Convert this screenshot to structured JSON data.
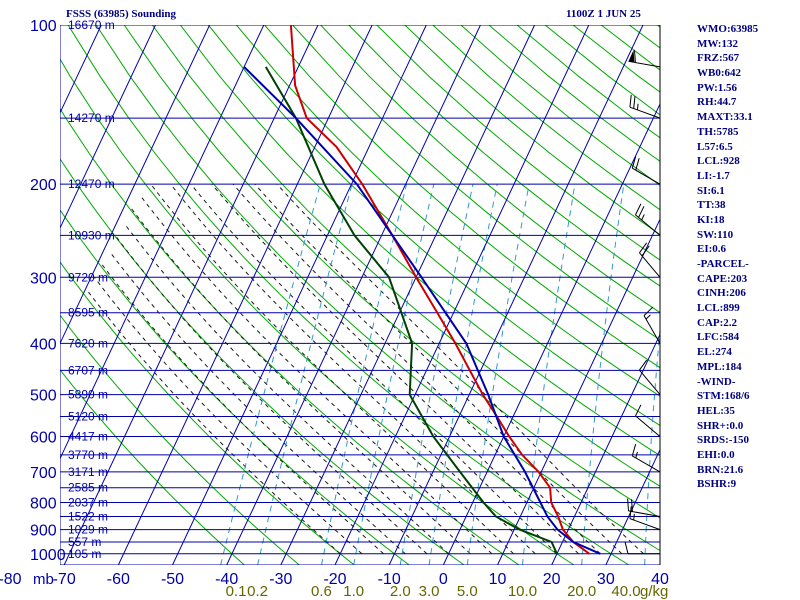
{
  "header": {
    "title": "FSSS (63985) Sounding",
    "valid": "1100Z  1 JUN 25"
  },
  "chart_data": {
    "type": "line",
    "title": "FSSS (63985) Sounding",
    "subtitle": "1100Z  1 JUN 25",
    "x_axis": {
      "label": "",
      "min": -80,
      "max": 40,
      "ticks": [
        -80,
        -70,
        -60,
        -50,
        -40,
        -30,
        -20,
        -10,
        0,
        10,
        20,
        30,
        40
      ],
      "tick_labels": [
        "-80",
        "-70",
        "-60",
        "-50",
        "-40",
        "-30",
        "-20",
        "-10",
        "0",
        "10",
        "20",
        "30",
        "40"
      ]
    },
    "y_axis": {
      "label": "mb",
      "scale": "log",
      "min": 100,
      "max": 1050,
      "ticks": [
        100,
        200,
        300,
        400,
        500,
        600,
        700,
        800,
        900,
        1000
      ],
      "tick_labels": [
        "100",
        "200",
        "300",
        "400",
        "500",
        "600",
        "700",
        "800",
        "900",
        "1000"
      ]
    },
    "height_labels": [
      {
        "p": 100,
        "text": "16670 m"
      },
      {
        "p": 150,
        "text": "14270 m"
      },
      {
        "p": 200,
        "text": "12470 m"
      },
      {
        "p": 250,
        "text": "10930 m"
      },
      {
        "p": 300,
        "text": "9720 m"
      },
      {
        "p": 350,
        "text": "8595 m"
      },
      {
        "p": 400,
        "text": "7620 m"
      },
      {
        "p": 450,
        "text": "6707 m"
      },
      {
        "p": 500,
        "text": "5890 m"
      },
      {
        "p": 550,
        "text": "5120 m"
      },
      {
        "p": 600,
        "text": "4417 m"
      },
      {
        "p": 650,
        "text": "3770 m"
      },
      {
        "p": 700,
        "text": "3171 m"
      },
      {
        "p": 750,
        "text": "2585 m"
      },
      {
        "p": 800,
        "text": "2037 m"
      },
      {
        "p": 850,
        "text": "1522 m"
      },
      {
        "p": 900,
        "text": "1029 m"
      },
      {
        "p": 950,
        "text": "557 m"
      },
      {
        "p": 1000,
        "text": "105 m"
      }
    ],
    "mixing_ratio_labels": [
      "0.1",
      "0.2",
      "0.6",
      "1.0",
      "2.0",
      "3.0",
      "5.0",
      "10.0",
      "20.0",
      "40.0"
    ],
    "mixing_ratio_unit": "g/kg",
    "series": [
      {
        "color": "#cc0000",
        "points": [
          {
            "p": 1000,
            "t": 26
          },
          {
            "p": 950,
            "t": 22
          },
          {
            "p": 925,
            "t": 20.5
          },
          {
            "p": 900,
            "t": 19
          },
          {
            "p": 850,
            "t": 17
          },
          {
            "p": 800,
            "t": 14.5
          },
          {
            "p": 750,
            "t": 13
          },
          {
            "p": 700,
            "t": 9.5
          },
          {
            "p": 650,
            "t": 5
          },
          {
            "p": 600,
            "t": 1
          },
          {
            "p": 550,
            "t": -3
          },
          {
            "p": 500,
            "t": -7.5
          },
          {
            "p": 450,
            "t": -12
          },
          {
            "p": 400,
            "t": -17
          },
          {
            "p": 350,
            "t": -23
          },
          {
            "p": 300,
            "t": -30
          },
          {
            "p": 250,
            "t": -38
          },
          {
            "p": 200,
            "t": -48
          },
          {
            "p": 170,
            "t": -56
          },
          {
            "p": 150,
            "t": -64
          },
          {
            "p": 130,
            "t": -69
          },
          {
            "p": 100,
            "t": -75
          }
        ]
      },
      {
        "color": "#004000",
        "points": [
          {
            "p": 1000,
            "t": 20
          },
          {
            "p": 950,
            "t": 18
          },
          {
            "p": 900,
            "t": 11
          },
          {
            "p": 850,
            "t": 5.5
          },
          {
            "p": 800,
            "t": 2
          },
          {
            "p": 700,
            "t": -5
          },
          {
            "p": 600,
            "t": -13
          },
          {
            "p": 500,
            "t": -21
          },
          {
            "p": 400,
            "t": -25
          },
          {
            "p": 300,
            "t": -35
          },
          {
            "p": 250,
            "t": -45
          },
          {
            "p": 200,
            "t": -55
          },
          {
            "p": 150,
            "t": -66
          },
          {
            "p": 120,
            "t": -76
          }
        ]
      },
      {
        "color": "#0000aa",
        "points": [
          {
            "p": 1000,
            "t": 28
          },
          {
            "p": 950,
            "t": 22
          },
          {
            "p": 900,
            "t": 18
          },
          {
            "p": 850,
            "t": 15
          },
          {
            "p": 800,
            "t": 12.5
          },
          {
            "p": 700,
            "t": 7
          },
          {
            "p": 600,
            "t": 0
          },
          {
            "p": 500,
            "t": -6.5
          },
          {
            "p": 400,
            "t": -15
          },
          {
            "p": 300,
            "t": -29
          },
          {
            "p": 250,
            "t": -38
          },
          {
            "p": 200,
            "t": -49
          },
          {
            "p": 150,
            "t": -66
          },
          {
            "p": 120,
            "t": -80
          }
        ]
      }
    ],
    "wind_barbs": [
      {
        "p": 1000,
        "dir": 270,
        "spd": 10
      },
      {
        "p": 900,
        "dir": 290,
        "spd": 15
      },
      {
        "p": 850,
        "dir": 280,
        "spd": 20
      },
      {
        "p": 700,
        "dir": 300,
        "spd": 15
      },
      {
        "p": 600,
        "dir": 310,
        "spd": 10
      },
      {
        "p": 500,
        "dir": 320,
        "spd": 10
      },
      {
        "p": 400,
        "dir": 330,
        "spd": 15
      },
      {
        "p": 300,
        "dir": 320,
        "spd": 20
      },
      {
        "p": 250,
        "dir": 310,
        "spd": 25
      },
      {
        "p": 200,
        "dir": 300,
        "spd": 20
      },
      {
        "p": 150,
        "dir": 290,
        "spd": 25
      },
      {
        "p": 120,
        "dir": 280,
        "spd": 60
      }
    ],
    "colors": {
      "grid": "#0000aa",
      "dry_adiabat": "#00aa00",
      "moist_adiabat": "#1a1a1a",
      "mixing_ratio": "#3399cc",
      "mixing_ratio_labels": "#666600",
      "axis_labels": "#0000aa",
      "barbs": "#000000"
    }
  },
  "indices": [
    "WMO:63985",
    "MW:132",
    "FRZ:567",
    "WB0:642",
    "PW:1.56",
    "RH:44.7",
    "MAXT:33.1",
    "TH:5785",
    "L57:6.5",
    "LCL:928",
    "LI:-1.7",
    "SI:6.1",
    "TT:38",
    "KI:18",
    "SW:110",
    "EI:0.6",
    "-PARCEL-",
    "CAPE:203",
    "CINH:206",
    "LCL:899",
    "CAP:2.2",
    "LFC:584",
    "EL:274",
    "MPL:184",
    "-WIND-",
    "STM:168/6",
    "HEL:35",
    "SHR+:0.0",
    "SRDS:-150",
    "EHI:0.0",
    "BRN:21.6",
    "BSHR:9"
  ]
}
